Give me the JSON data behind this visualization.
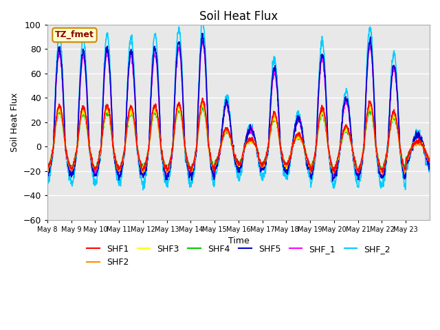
{
  "title": "Soil Heat Flux",
  "xlabel": "Time",
  "ylabel": "Soil Heat Flux",
  "ylim": [
    -60,
    100
  ],
  "yticks": [
    -60,
    -40,
    -20,
    0,
    20,
    40,
    60,
    80,
    100
  ],
  "x_tick_labels": [
    "May 8",
    "May 9",
    "May 10",
    "May 11",
    "May 12",
    "May 13",
    "May 14",
    "May 15",
    "May 16",
    "May 17",
    "May 18",
    "May 19",
    "May 20",
    "May 21",
    "May 22",
    "May 23"
  ],
  "series_names": [
    "SHF1",
    "SHF2",
    "SHF3",
    "SHF4",
    "SHF5",
    "SHF_1",
    "SHF_2"
  ],
  "series_colors": [
    "#ff0000",
    "#ff8c00",
    "#ffff00",
    "#00cc00",
    "#0000cc",
    "#ff00ff",
    "#00ccff"
  ],
  "annotation_text": "TZ_fmet",
  "annotation_bg": "#ffffcc",
  "annotation_border": "#cc8800",
  "background_color": "#e8e8e8",
  "grid_color": "#ffffff",
  "num_days": 16,
  "line_width": 1.2,
  "day_amps_base": [
    85,
    82,
    85,
    83,
    85,
    90,
    95,
    38,
    15,
    68,
    25,
    80,
    42,
    91,
    71,
    10
  ],
  "day_troughs_base": [
    25,
    26,
    26,
    26,
    27,
    27,
    27,
    20,
    22,
    22,
    22,
    28,
    27,
    28,
    28,
    15
  ],
  "amp_scales": [
    0.4,
    0.38,
    0.35,
    0.33,
    0.95,
    0.9,
    1.08
  ],
  "trough_scales": [
    0.68,
    0.72,
    0.7,
    0.65,
    0.9,
    0.8,
    1.15
  ],
  "noise_scales": [
    1.0,
    1.0,
    1.0,
    1.0,
    1.5,
    1.5,
    2.0
  ]
}
